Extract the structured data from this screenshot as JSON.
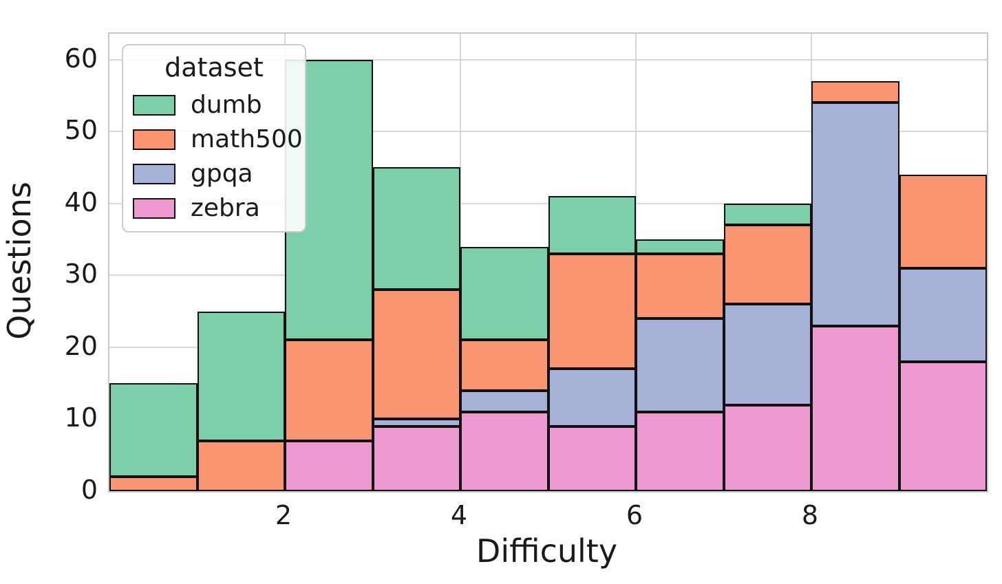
{
  "chart_data": {
    "type": "bar",
    "subtype": "stacked-histogram",
    "title": "",
    "xlabel": "Difficulty",
    "ylabel": "Questions",
    "xlim": [
      0,
      10
    ],
    "ylim": [
      0,
      63.6
    ],
    "x_ticks": [
      2,
      4,
      6,
      8
    ],
    "y_ticks": [
      0,
      10,
      20,
      30,
      40,
      50,
      60
    ],
    "bin_edges": [
      0,
      1,
      2,
      3,
      4,
      5,
      6,
      7,
      8,
      9,
      10
    ],
    "grid": true,
    "legend_position": "upper left",
    "series": [
      {
        "name": "zebra",
        "color": "#ee9ad1",
        "values": [
          0,
          0,
          7,
          9,
          11,
          9,
          11,
          12,
          23,
          18
        ]
      },
      {
        "name": "gpqa",
        "color": "#a7b1d7",
        "values": [
          0,
          0,
          0,
          1,
          3,
          8,
          13,
          14,
          31,
          13
        ]
      },
      {
        "name": "math500",
        "color": "#f99671",
        "values": [
          2,
          7,
          14,
          18,
          7,
          16,
          9,
          11,
          3,
          13
        ]
      },
      {
        "name": "dumb",
        "color": "#7ccfa9",
        "values": [
          13,
          18,
          39,
          17,
          13,
          8,
          2,
          3,
          0,
          0
        ]
      }
    ]
  },
  "legend": {
    "title": "dataset",
    "entries": [
      {
        "label": "dumb",
        "color": "#7ccfa9"
      },
      {
        "label": "math500",
        "color": "#f99671"
      },
      {
        "label": "gpqa",
        "color": "#a7b1d7"
      },
      {
        "label": "zebra",
        "color": "#ee9ad1"
      }
    ]
  },
  "style": {
    "bar_edge_color": "#111111",
    "grid_color": "#d6d6d6",
    "spine_color": "#c9c9c9",
    "text_color": "#1a1a1a",
    "background": "#ffffff"
  }
}
